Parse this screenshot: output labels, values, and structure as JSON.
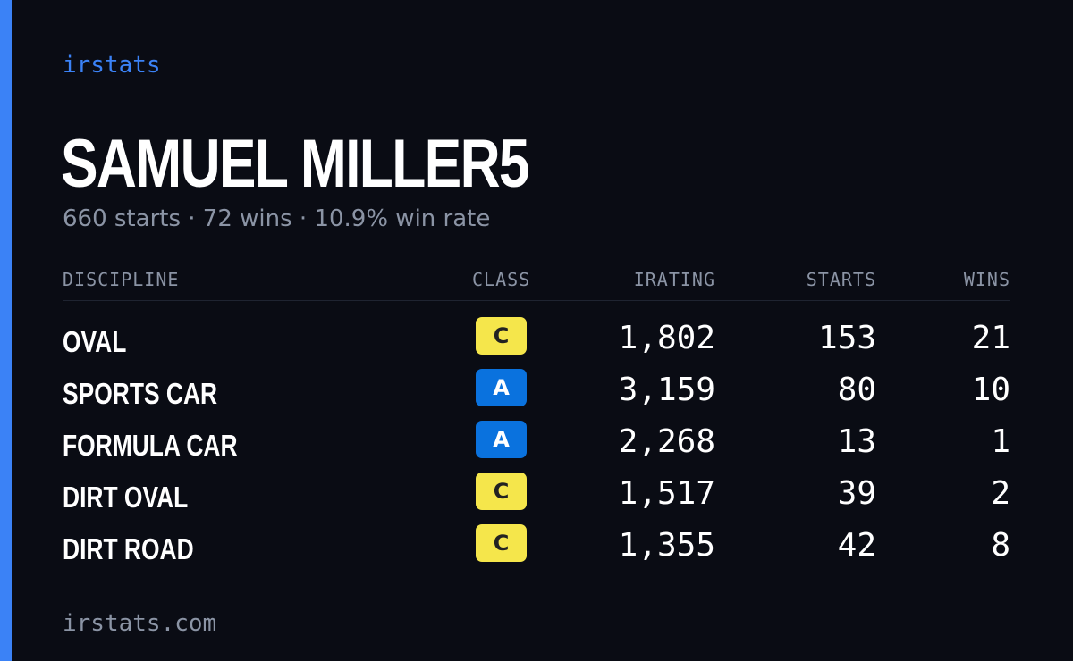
{
  "brand": "irstats",
  "player": {
    "name": "SAMUEL MILLER5",
    "summary": "660 starts · 72 wins · 10.9% win rate"
  },
  "table": {
    "headers": {
      "discipline": "DISCIPLINE",
      "class": "CLASS",
      "irating": "IRATING",
      "starts": "STARTS",
      "wins": "WINS"
    },
    "rows": [
      {
        "discipline": "OVAL",
        "class": "C",
        "irating": "1,802",
        "starts": "153",
        "wins": "21"
      },
      {
        "discipline": "SPORTS CAR",
        "class": "A",
        "irating": "3,159",
        "starts": "80",
        "wins": "10"
      },
      {
        "discipline": "FORMULA CAR",
        "class": "A",
        "irating": "2,268",
        "starts": "13",
        "wins": "1"
      },
      {
        "discipline": "DIRT OVAL",
        "class": "C",
        "irating": "1,517",
        "starts": "39",
        "wins": "2"
      },
      {
        "discipline": "DIRT ROAD",
        "class": "C",
        "irating": "1,355",
        "starts": "42",
        "wins": "8"
      }
    ]
  },
  "footer": "irstats.com",
  "colors": {
    "accent": "#3b82f6",
    "background": "#0a0c14",
    "class_a": "#0a72de",
    "class_c": "#f5e64b",
    "muted_text": "#8b94a5"
  }
}
